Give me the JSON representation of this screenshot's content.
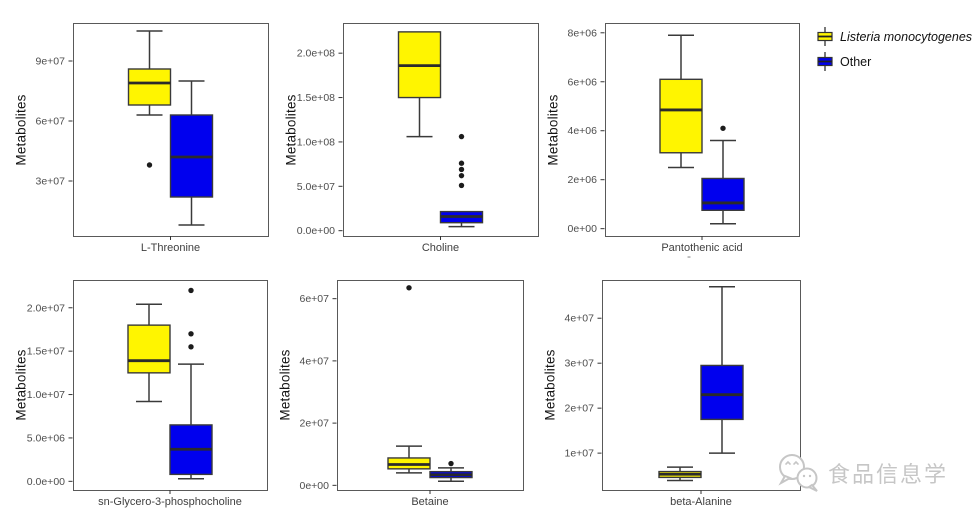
{
  "figure": {
    "ylabel": "Metabolites",
    "background": "#ffffff",
    "panel_border_color": "#595959",
    "tick_label_color": "#4d4d4d",
    "box_border_color": "#3a3a3a",
    "median_color": "#2b2b2b",
    "outlier_color": "#1c1c1c",
    "grid": "off"
  },
  "legend": {
    "position": "top-right",
    "items": [
      {
        "label": "Listeria monocytogenes",
        "color": "#FFF500",
        "italic": true
      },
      {
        "label": "Other",
        "color": "#0000EE",
        "italic": false
      }
    ]
  },
  "marks": {
    "panel3_submark": "-"
  },
  "watermark": {
    "text": "食品信息学",
    "icon": "wechat-chat-bubbles-icon",
    "color": "#c6c6c6"
  },
  "chart_data": [
    {
      "type": "boxplot",
      "xlabel": "L-Threonine",
      "ylabel": "Metabolites",
      "ylim": [
        2500000,
        109000000
      ],
      "yticks": [
        {
          "value": 30000000,
          "label": "3e+07"
        },
        {
          "value": 60000000,
          "label": "6e+07"
        },
        {
          "value": 90000000,
          "label": "9e+07"
        }
      ],
      "series": [
        {
          "name": "Listeria monocytogenes",
          "color": "#FFF500",
          "low": 63000000,
          "q1": 68000000,
          "median": 79000000,
          "q3": 86000000,
          "high": 105000000,
          "outliers": [
            38000000
          ]
        },
        {
          "name": "Other",
          "color": "#0000EE",
          "low": 8000000,
          "q1": 22000000,
          "median": 42000000,
          "q3": 63000000,
          "high": 80000000,
          "outliers": []
        }
      ]
    },
    {
      "type": "boxplot",
      "xlabel": "Choline",
      "ylabel": "Metabolites",
      "ylim": [
        -6000000,
        234000000
      ],
      "yticks": [
        {
          "value": 0,
          "label": "0.0e+00"
        },
        {
          "value": 50000000,
          "label": "5.0e+07"
        },
        {
          "value": 100000000,
          "label": "1.0e+08"
        },
        {
          "value": 150000000,
          "label": "1.5e+08"
        },
        {
          "value": 200000000,
          "label": "2.0e+08"
        }
      ],
      "series": [
        {
          "name": "Listeria monocytogenes",
          "color": "#FFF500",
          "low": 106000000,
          "q1": 150000000,
          "median": 186000000,
          "q3": 224000000,
          "high": 224000000,
          "outliers": []
        },
        {
          "name": "Other",
          "color": "#0000EE",
          "low": 4500000,
          "q1": 9000000,
          "median": 16000000,
          "q3": 21500000,
          "high": 21500000,
          "outliers": [
            51000000,
            62000000,
            69000000,
            76000000,
            106000000
          ]
        }
      ]
    },
    {
      "type": "boxplot",
      "xlabel": "Pantothenic acid",
      "ylabel": "Metabolites",
      "ylim": [
        -300000,
        8400000
      ],
      "yticks": [
        {
          "value": 0,
          "label": "0e+00"
        },
        {
          "value": 2000000,
          "label": "2e+06"
        },
        {
          "value": 4000000,
          "label": "4e+06"
        },
        {
          "value": 6000000,
          "label": "6e+06"
        },
        {
          "value": 8000000,
          "label": "8e+06"
        }
      ],
      "series": [
        {
          "name": "Listeria monocytogenes",
          "color": "#FFF500",
          "low": 2500000,
          "q1": 3100000,
          "median": 4850000,
          "q3": 6100000,
          "high": 7900000,
          "outliers": []
        },
        {
          "name": "Other",
          "color": "#0000EE",
          "low": 200000,
          "q1": 750000,
          "median": 1050000,
          "q3": 2050000,
          "high": 3600000,
          "outliers": [
            4100000
          ]
        }
      ]
    },
    {
      "type": "boxplot",
      "xlabel": "sn-Glycero-3-phosphocholine",
      "ylabel": "Metabolites",
      "ylim": [
        -1000000,
        23200000
      ],
      "yticks": [
        {
          "value": 0,
          "label": "0.0e+00"
        },
        {
          "value": 5000000,
          "label": "5.0e+06"
        },
        {
          "value": 10000000,
          "label": "1.0e+07"
        },
        {
          "value": 15000000,
          "label": "1.5e+07"
        },
        {
          "value": 20000000,
          "label": "2.0e+07"
        }
      ],
      "series": [
        {
          "name": "Listeria monocytogenes",
          "color": "#FFF500",
          "low": 9200000,
          "q1": 12500000,
          "median": 13900000,
          "q3": 18000000,
          "high": 20400000,
          "outliers": []
        },
        {
          "name": "Other",
          "color": "#0000EE",
          "low": 300000,
          "q1": 800000,
          "median": 3700000,
          "q3": 6500000,
          "high": 13500000,
          "outliers": [
            15500000,
            17000000,
            22000000
          ]
        }
      ]
    },
    {
      "type": "boxplot",
      "xlabel": "Betaine",
      "ylabel": "Metabolites",
      "ylim": [
        -1500000,
        66000000
      ],
      "yticks": [
        {
          "value": 0,
          "label": "0e+00"
        },
        {
          "value": 20000000,
          "label": "2e+07"
        },
        {
          "value": 40000000,
          "label": "4e+07"
        },
        {
          "value": 60000000,
          "label": "6e+07"
        }
      ],
      "series": [
        {
          "name": "Listeria monocytogenes",
          "color": "#FFF500",
          "low": 4000000,
          "q1": 5300000,
          "median": 6700000,
          "q3": 8800000,
          "high": 12600000,
          "outliers": [
            63500000
          ]
        },
        {
          "name": "Other",
          "color": "#0000EE",
          "low": 1300000,
          "q1": 2500000,
          "median": 3400000,
          "q3": 4400000,
          "high": 5600000,
          "outliers": [
            7000000
          ]
        }
      ]
    },
    {
      "type": "boxplot",
      "xlabel": "beta-Alanine",
      "ylabel": "Metabolites",
      "ylim": [
        1800000,
        48500000
      ],
      "yticks": [
        {
          "value": 10000000,
          "label": "1e+07"
        },
        {
          "value": 20000000,
          "label": "2e+07"
        },
        {
          "value": 30000000,
          "label": "3e+07"
        },
        {
          "value": 40000000,
          "label": "4e+07"
        }
      ],
      "series": [
        {
          "name": "Listeria monocytogenes",
          "color": "#FFF500",
          "low": 3900000,
          "q1": 4600000,
          "median": 5300000,
          "q3": 5900000,
          "high": 6900000,
          "outliers": []
        },
        {
          "name": "Other",
          "color": "#0000EE",
          "low": 10000000,
          "q1": 17500000,
          "median": 23000000,
          "q3": 29500000,
          "high": 47000000,
          "outliers": []
        }
      ]
    }
  ]
}
